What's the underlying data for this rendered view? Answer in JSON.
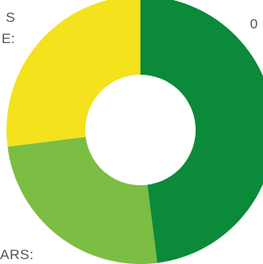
{
  "labels": {
    "top_left_line1": "S",
    "top_left_line2": "E:",
    "top_right": "0",
    "bottom_left": "ARS:"
  },
  "chart_data": {
    "type": "pie",
    "variant": "donut",
    "slices": [
      {
        "value": 48,
        "color": "#0b8a3a"
      },
      {
        "value": 25,
        "color": "#7cbd43"
      },
      {
        "value": 27,
        "color": "#f3e21c"
      }
    ],
    "start": "top",
    "direction": "clockwise"
  }
}
